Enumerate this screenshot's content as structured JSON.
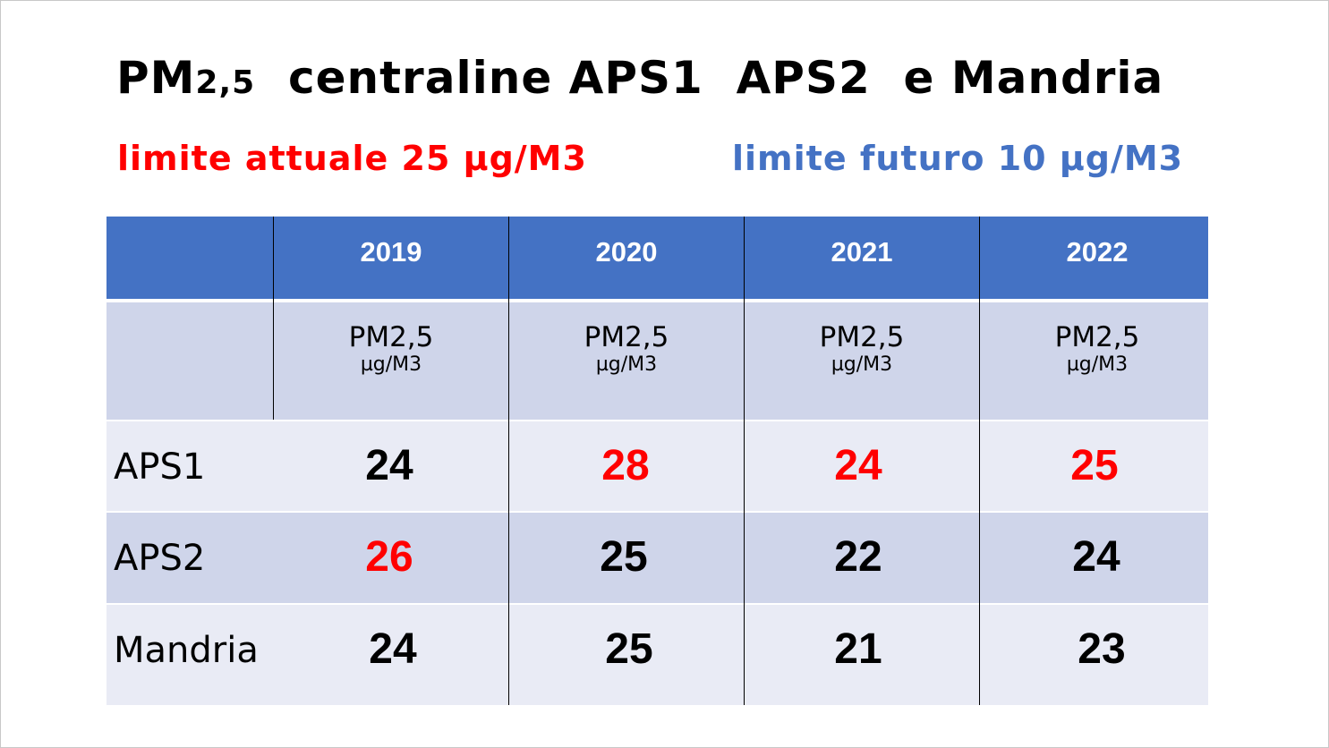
{
  "title": {
    "main": "PM",
    "subscript": "2,5",
    "rest": "  centraline APS1  APS2  e Mandria"
  },
  "limits": {
    "current": "limite attuale 25 µg/M3",
    "future": "limite futuro 10 µg/M3",
    "current_color": "#ff0000",
    "future_color": "#4472c4"
  },
  "table": {
    "years": [
      "2019",
      "2020",
      "2021",
      "2022"
    ],
    "unit_line1": "PM2,5",
    "unit_line2": "µg/M3",
    "rows": [
      {
        "label": "APS1",
        "values": [
          "24",
          "28",
          "24",
          "25"
        ],
        "exceeds": [
          false,
          true,
          true,
          true
        ]
      },
      {
        "label": "APS2",
        "values": [
          "26",
          "25",
          "22",
          "24"
        ],
        "exceeds": [
          true,
          false,
          false,
          false
        ]
      },
      {
        "label": "Mandria",
        "values": [
          "24",
          "25",
          "21",
          "23"
        ],
        "exceeds": [
          false,
          false,
          false,
          false
        ]
      }
    ],
    "header_color": "#4472c4",
    "exceed_color": "#ff0000",
    "normal_color": "#000000"
  }
}
